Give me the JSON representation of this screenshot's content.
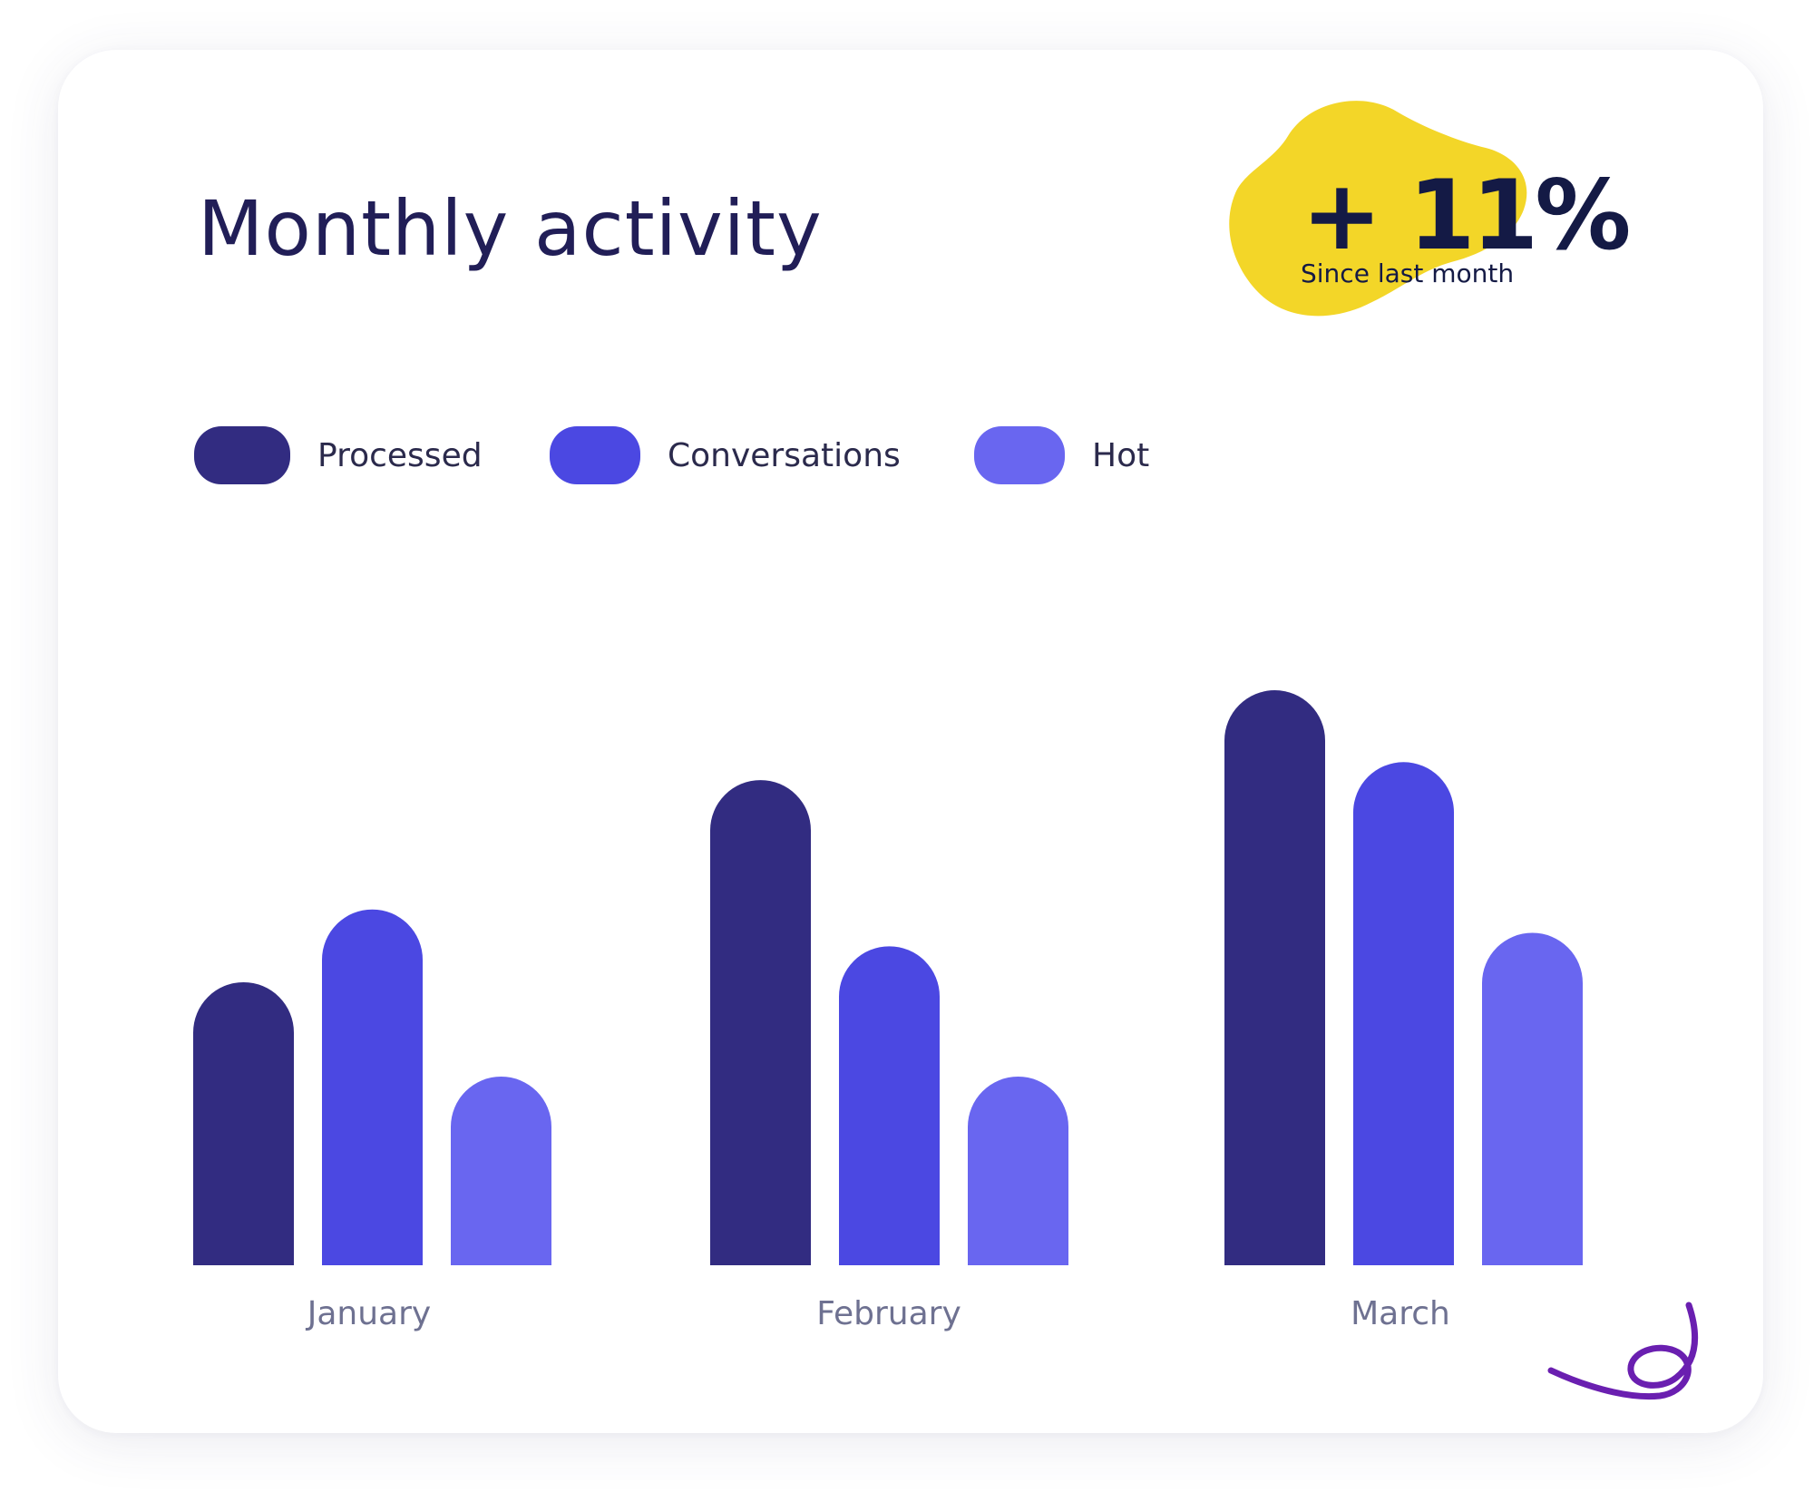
{
  "card": {
    "title": "Monthly activity",
    "badge": {
      "value": "+ 11%",
      "subtitle": "Since last month",
      "color": "#f3d628"
    }
  },
  "legend": [
    {
      "label": "Processed",
      "color": "#322c81"
    },
    {
      "label": "Conversations",
      "color": "#4b48e2"
    },
    {
      "label": "Hot",
      "color": "#6966f0"
    }
  ],
  "chart_data": {
    "type": "bar",
    "categories": [
      "January",
      "February",
      "March"
    ],
    "series": [
      {
        "name": "Processed",
        "color": "#322c81",
        "values": [
          315,
          540,
          640
        ]
      },
      {
        "name": "Conversations",
        "color": "#4b48e2",
        "values": [
          396,
          355,
          560
        ]
      },
      {
        "name": "Hot",
        "color": "#6966f0",
        "values": [
          210,
          210,
          370
        ]
      }
    ],
    "ylim": [
      0,
      640
    ],
    "grid": false,
    "legend_position": "top-left",
    "xlabel": "",
    "ylabel": ""
  },
  "decoration": {
    "squiggle_icon": "squiggle-logo",
    "squiggle_color": "#6a1fb0"
  }
}
